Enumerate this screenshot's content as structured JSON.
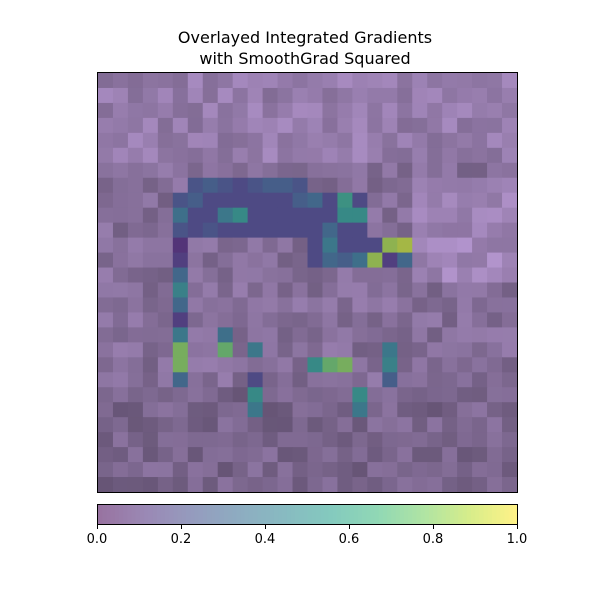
{
  "title": {
    "line1": "Overlayed Integrated Gradients",
    "line2": "with SmoothGrad Squared"
  },
  "chart_data": {
    "type": "heatmap",
    "title": "Overlayed Integrated Gradients\nwith SmoothGrad Squared",
    "grid": false,
    "colormap": "viridis (alpha overlay on grayscale image)",
    "colorbar": {
      "range": [
        0.0,
        1.0
      ],
      "ticks": [
        "0.0",
        "0.2",
        "0.4",
        "0.6",
        "0.8",
        "1.0"
      ]
    },
    "rows": 28,
    "cols": 28,
    "background_colors": {
      "purple_dark": "#574466",
      "purple_mid": "#72607f",
      "purple_light": "#8e7a9c",
      "purple_lighter": "#a58fb3",
      "bluish_light": "#9aa9c4"
    },
    "attribution_values": [
      [
        0,
        0,
        0,
        0,
        0,
        0,
        0,
        0,
        0,
        0,
        0,
        0,
        0,
        0,
        0,
        0,
        0,
        0,
        0,
        0,
        0,
        0,
        0,
        0,
        0,
        0,
        0,
        0
      ],
      [
        0,
        0,
        0,
        0,
        0,
        0,
        0,
        0,
        0,
        0,
        0,
        0,
        0,
        0,
        0,
        0,
        0,
        0,
        0,
        0,
        0,
        0,
        0,
        0,
        0,
        0,
        0,
        0
      ],
      [
        0,
        0,
        0,
        0,
        0,
        0,
        0,
        0,
        0,
        0,
        0,
        0,
        0,
        0,
        0,
        0,
        0,
        0,
        0,
        0,
        0,
        0,
        0,
        0,
        0,
        0,
        0,
        0
      ],
      [
        0,
        0,
        0,
        0,
        0,
        0,
        0,
        0,
        0,
        0,
        0,
        0,
        0,
        0,
        0,
        0,
        0,
        0,
        0,
        0,
        0,
        0,
        0,
        0,
        0,
        0,
        0,
        0
      ],
      [
        0,
        0,
        0,
        0,
        0,
        0,
        0,
        0,
        0,
        0,
        0,
        0,
        0,
        0,
        0,
        0,
        0,
        0,
        0,
        0,
        0,
        0,
        0,
        0,
        0,
        0,
        0,
        0
      ],
      [
        0,
        0,
        0,
        0,
        0,
        0,
        0,
        0,
        0,
        0,
        0,
        0,
        0,
        0,
        0,
        0,
        0,
        0,
        0,
        0,
        0,
        0,
        0,
        0,
        0,
        0,
        0,
        0
      ],
      [
        0,
        0,
        0,
        0,
        0,
        0,
        0,
        0,
        0,
        0,
        0,
        0,
        0,
        0,
        0,
        0,
        0,
        0,
        0,
        0,
        0,
        0,
        0,
        0,
        0,
        0,
        0,
        0
      ],
      [
        0,
        0,
        0,
        0,
        0,
        0,
        0.25,
        0.3,
        0.25,
        0.2,
        0.25,
        0.3,
        0.3,
        0.25,
        0,
        0,
        0,
        0,
        0,
        0,
        0,
        0,
        0,
        0,
        0,
        0,
        0,
        0
      ],
      [
        0,
        0,
        0,
        0,
        0,
        0.25,
        0.3,
        0.2,
        0.2,
        0.2,
        0.2,
        0.2,
        0.2,
        0.3,
        0.35,
        0.2,
        0.6,
        0.2,
        0,
        0,
        0,
        0,
        0,
        0,
        0,
        0,
        0,
        0
      ],
      [
        0,
        0,
        0,
        0,
        0,
        0.4,
        0.2,
        0.2,
        0.45,
        0.55,
        0.2,
        0.2,
        0.2,
        0.2,
        0.2,
        0.2,
        0.55,
        0.55,
        0,
        0,
        0,
        0,
        0,
        0,
        0,
        0,
        0,
        0
      ],
      [
        0,
        0,
        0,
        0,
        0,
        0.25,
        0.2,
        0.25,
        0.2,
        0.2,
        0.2,
        0.2,
        0.2,
        0.2,
        0.2,
        0.35,
        0.2,
        0.2,
        0,
        0,
        0,
        0,
        0,
        0,
        0,
        0,
        0,
        0
      ],
      [
        0,
        0,
        0,
        0,
        0,
        0.1,
        0,
        0,
        0,
        0,
        0,
        0,
        0,
        0,
        0.2,
        0.45,
        0.2,
        0.2,
        0.2,
        0.85,
        0.9,
        0,
        0,
        0,
        0,
        0,
        0,
        0
      ],
      [
        0,
        0,
        0,
        0,
        0,
        0.15,
        0,
        0,
        0,
        0,
        0,
        0,
        0,
        0,
        0.2,
        0.35,
        0.3,
        0.4,
        0.85,
        0.15,
        0.35,
        0,
        0,
        0,
        0,
        0,
        0,
        0
      ],
      [
        0,
        0,
        0,
        0,
        0,
        0.35,
        0,
        0,
        0,
        0,
        0,
        0,
        0,
        0,
        0,
        0,
        0,
        0,
        0,
        0,
        0,
        0,
        0,
        0,
        0,
        0,
        0,
        0
      ],
      [
        0,
        0,
        0,
        0,
        0,
        0.5,
        0,
        0,
        0,
        0,
        0,
        0,
        0,
        0,
        0,
        0,
        0,
        0,
        0,
        0,
        0,
        0,
        0,
        0,
        0,
        0,
        0,
        0
      ],
      [
        0,
        0,
        0,
        0,
        0,
        0.35,
        0,
        0,
        0,
        0,
        0,
        0,
        0,
        0,
        0,
        0,
        0,
        0,
        0,
        0,
        0,
        0,
        0,
        0,
        0,
        0,
        0,
        0
      ],
      [
        0,
        0,
        0,
        0,
        0,
        0.15,
        0,
        0,
        0,
        0,
        0,
        0,
        0,
        0,
        0,
        0,
        0,
        0,
        0,
        0,
        0,
        0,
        0,
        0,
        0,
        0,
        0,
        0
      ],
      [
        0,
        0,
        0,
        0,
        0,
        0.45,
        0,
        0,
        0.4,
        0,
        0,
        0,
        0,
        0,
        0,
        0,
        0,
        0,
        0,
        0,
        0,
        0,
        0,
        0,
        0,
        0,
        0,
        0
      ],
      [
        0,
        0,
        0,
        0,
        0,
        0.8,
        0,
        0,
        0.75,
        0,
        0.45,
        0,
        0,
        0,
        0,
        0,
        0,
        0,
        0,
        0.45,
        0,
        0,
        0,
        0,
        0,
        0,
        0,
        0
      ],
      [
        0,
        0,
        0,
        0,
        0,
        0.8,
        0,
        0,
        0,
        0,
        0,
        0,
        0,
        0,
        0.55,
        0.75,
        0.8,
        0,
        0,
        0.5,
        0,
        0,
        0,
        0,
        0,
        0,
        0,
        0
      ],
      [
        0,
        0,
        0,
        0,
        0,
        0.35,
        0,
        0,
        0,
        0,
        0.2,
        0,
        0,
        0,
        0,
        0,
        0,
        0,
        0,
        0.3,
        0,
        0,
        0,
        0,
        0,
        0,
        0,
        0
      ],
      [
        0,
        0,
        0,
        0,
        0,
        0,
        0,
        0,
        0,
        0,
        0.55,
        0,
        0,
        0,
        0,
        0,
        0,
        0.55,
        0,
        0,
        0,
        0,
        0,
        0,
        0,
        0,
        0,
        0
      ],
      [
        0,
        0,
        0,
        0,
        0,
        0,
        0,
        0,
        0,
        0,
        0.45,
        0,
        0,
        0,
        0,
        0,
        0,
        0.45,
        0,
        0,
        0,
        0,
        0,
        0,
        0,
        0,
        0,
        0
      ],
      [
        0,
        0,
        0,
        0,
        0,
        0,
        0,
        0,
        0,
        0,
        0,
        0,
        0,
        0,
        0,
        0,
        0,
        0,
        0,
        0,
        0,
        0,
        0,
        0,
        0,
        0,
        0,
        0
      ],
      [
        0,
        0,
        0,
        0,
        0,
        0,
        0,
        0,
        0,
        0,
        0,
        0,
        0,
        0,
        0,
        0,
        0,
        0,
        0,
        0,
        0,
        0,
        0,
        0,
        0,
        0,
        0,
        0
      ],
      [
        0,
        0,
        0,
        0,
        0,
        0,
        0,
        0,
        0,
        0,
        0,
        0,
        0,
        0,
        0,
        0,
        0,
        0,
        0,
        0,
        0,
        0,
        0,
        0,
        0,
        0,
        0,
        0
      ],
      [
        0,
        0,
        0,
        0,
        0,
        0,
        0,
        0,
        0,
        0,
        0,
        0,
        0,
        0,
        0,
        0,
        0,
        0,
        0,
        0,
        0,
        0,
        0,
        0,
        0,
        0,
        0,
        0
      ],
      [
        0,
        0,
        0,
        0,
        0,
        0,
        0,
        0,
        0,
        0,
        0,
        0,
        0,
        0,
        0,
        0,
        0,
        0,
        0,
        0,
        0,
        0,
        0,
        0,
        0,
        0,
        0,
        0
      ]
    ]
  }
}
